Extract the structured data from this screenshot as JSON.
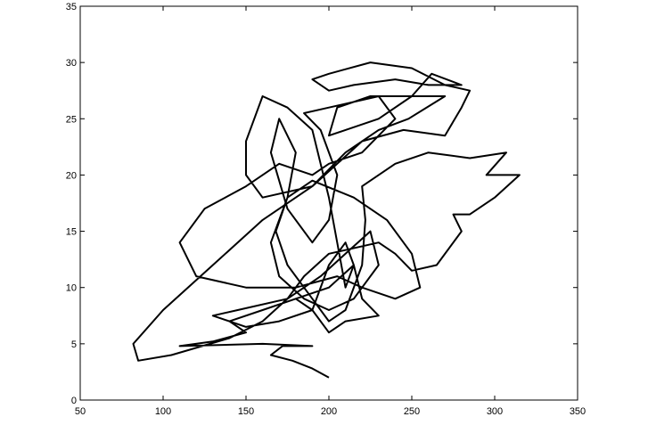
{
  "chart_data": {
    "type": "line",
    "xlim": [
      50,
      350
    ],
    "xticks": [
      50,
      100,
      150,
      200,
      250,
      300,
      350
    ],
    "ylim": [
      0,
      35
    ],
    "yticks": [
      0,
      5,
      10,
      15,
      20,
      25,
      30,
      35
    ],
    "x": [
      200,
      190,
      178,
      165,
      172,
      190,
      160,
      110,
      130,
      150,
      140,
      160,
      180,
      200,
      215,
      210,
      200,
      190,
      170,
      150,
      130,
      145,
      175,
      195,
      210,
      225,
      230,
      215,
      200,
      185,
      170,
      165,
      175,
      180,
      170,
      165,
      175,
      190,
      200,
      205,
      195,
      185,
      200,
      230,
      240,
      220,
      200,
      190,
      170,
      150,
      125,
      110,
      120,
      150,
      180,
      205,
      220,
      240,
      255,
      250,
      235,
      215,
      190,
      175,
      168,
      175,
      190,
      200,
      210,
      220,
      222,
      220,
      240,
      260,
      285,
      307,
      295,
      315,
      300,
      285,
      275,
      280,
      265,
      250,
      240,
      230,
      200,
      185,
      175,
      160,
      140,
      105,
      85,
      82,
      100,
      130,
      160,
      190,
      220,
      245,
      270,
      280,
      285,
      270,
      250,
      225,
      200,
      190,
      200,
      215,
      240,
      260,
      280,
      262,
      250,
      230,
      210,
      200,
      205,
      225,
      270,
      248,
      230,
      210,
      190,
      160,
      150,
      150,
      160,
      175,
      190,
      200,
      205,
      210,
      215,
      220,
      230,
      210,
      200,
      190,
      180
    ],
    "series": [
      {
        "color": "#000000",
        "values": [
          2,
          2.8,
          3.5,
          4,
          4.8,
          4.8,
          5,
          4.8,
          5.2,
          6,
          7,
          8,
          9,
          10,
          12,
          14,
          12,
          8,
          7,
          6.5,
          7.5,
          8,
          9,
          11,
          13,
          15,
          12,
          9,
          8,
          9,
          11,
          14,
          18,
          22,
          25,
          22,
          17,
          14,
          16,
          20,
          24,
          25.5,
          26,
          27,
          25,
          22,
          21,
          20,
          21,
          19,
          17,
          14,
          11,
          10,
          10,
          11,
          10,
          9,
          10,
          13,
          16,
          18,
          19.5,
          18,
          15,
          12,
          9,
          7,
          8,
          12,
          16,
          19,
          21,
          22,
          21.5,
          22,
          20,
          20,
          18,
          16.5,
          16.5,
          15,
          12,
          11.5,
          13,
          14,
          13,
          11,
          9,
          7,
          5.5,
          4,
          3.5,
          5,
          8,
          12,
          16,
          19,
          23,
          24,
          23.5,
          26,
          27.5,
          28,
          29.5,
          30,
          29,
          28.5,
          27.5,
          28,
          28.5,
          28,
          28,
          29,
          27,
          25,
          24,
          23.5,
          26,
          27,
          27,
          25,
          24,
          22,
          19,
          18,
          20,
          23,
          27,
          26,
          24,
          18,
          14,
          10,
          12,
          9,
          7.5,
          7,
          6,
          8,
          9
        ]
      }
    ]
  }
}
